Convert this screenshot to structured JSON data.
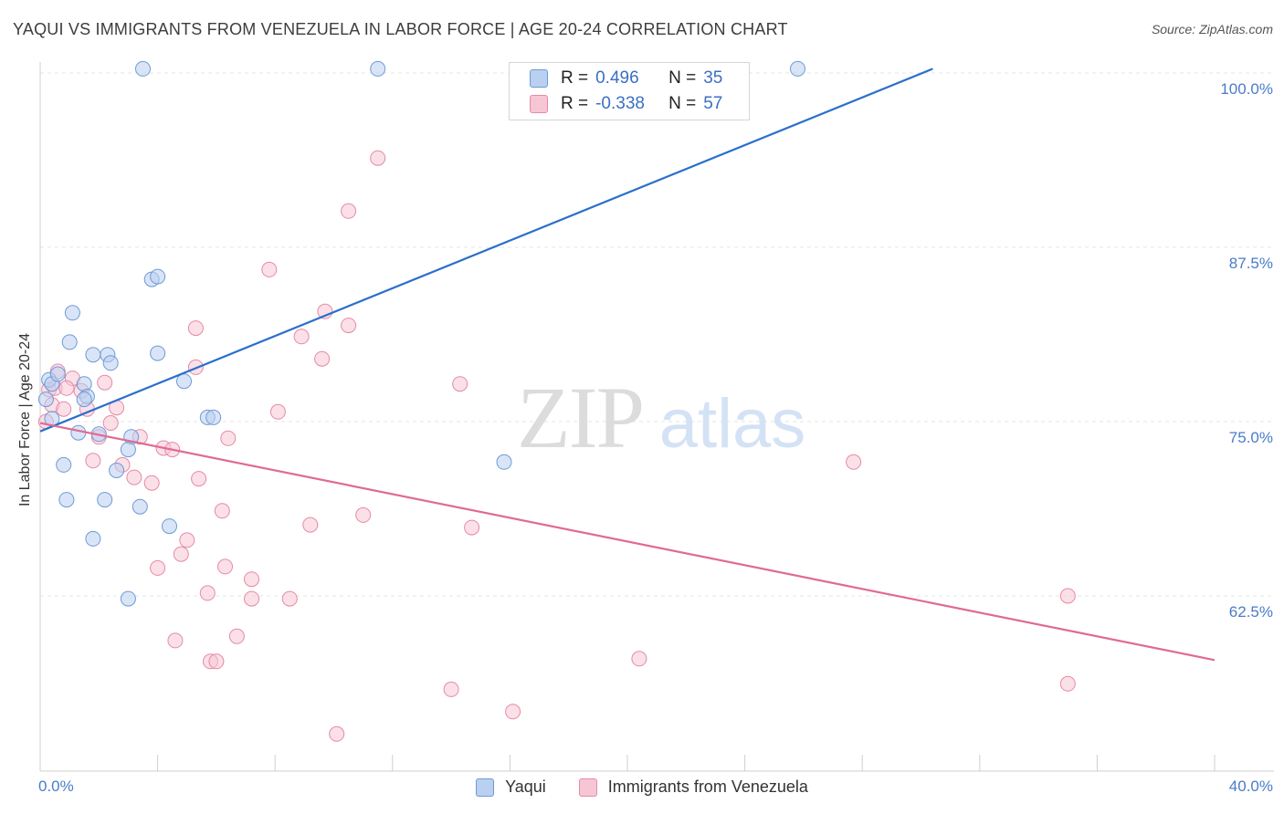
{
  "header": {
    "title": "YAQUI VS IMMIGRANTS FROM VENEZUELA IN LABOR FORCE | AGE 20-24 CORRELATION CHART",
    "source": "Source: ZipAtlas.com"
  },
  "watermark": {
    "zip": "ZIP",
    "atlas": "atlas"
  },
  "colors": {
    "blue_fill": "#b9d0f0",
    "blue_stroke": "#6e9ad6",
    "blue_line": "#2a6fcb",
    "pink_fill": "#f7c6d5",
    "pink_stroke": "#e58aa6",
    "pink_line": "#e06a93",
    "axis_text": "#4a7cc9"
  },
  "legend": {
    "rows": [
      {
        "r_label": "R =",
        "r_value": "0.496",
        "n_label": "N =",
        "n_value": "35"
      },
      {
        "r_label": "R =",
        "r_value": "-0.338",
        "n_label": "N =",
        "n_value": "57"
      }
    ]
  },
  "bottom_legend": {
    "items": [
      {
        "label": "Yaqui"
      },
      {
        "label": "Immigrants from Venezuela"
      }
    ]
  },
  "chart_data": {
    "type": "scatter",
    "title": "YAQUI VS IMMIGRANTS FROM VENEZUELA IN LABOR FORCE | AGE 20-24 CORRELATION CHART",
    "xlabel": "",
    "ylabel": "In Labor Force | Age 20-24",
    "xlim": [
      0,
      40
    ],
    "ylim": [
      51.5,
      101.5
    ],
    "x_tick_labels": [
      {
        "value": 0,
        "label": "0.0%"
      },
      {
        "value": 40,
        "label": "40.0%"
      }
    ],
    "y_tick_labels": [
      {
        "value": 100,
        "label": "100.0%"
      },
      {
        "value": 87.5,
        "label": "87.5%"
      },
      {
        "value": 75,
        "label": "75.0%"
      },
      {
        "value": 62.5,
        "label": "62.5%"
      }
    ],
    "grid": true,
    "series": [
      {
        "name": "Yaqui",
        "r": 0.496,
        "n": 35,
        "trend": {
          "x": [
            0,
            30.4
          ],
          "y": [
            74.3,
            100.3
          ]
        },
        "points": [
          [
            3.5,
            100.3
          ],
          [
            11.5,
            100.3
          ],
          [
            25.8,
            100.3
          ],
          [
            3.8,
            85.2
          ],
          [
            4.0,
            85.4
          ],
          [
            1.1,
            82.8
          ],
          [
            1.0,
            80.7
          ],
          [
            1.8,
            79.8
          ],
          [
            2.3,
            79.8
          ],
          [
            2.4,
            79.2
          ],
          [
            4.0,
            79.9
          ],
          [
            4.9,
            77.9
          ],
          [
            0.3,
            78.0
          ],
          [
            0.4,
            77.7
          ],
          [
            0.6,
            78.4
          ],
          [
            1.5,
            77.7
          ],
          [
            1.6,
            76.8
          ],
          [
            1.5,
            76.6
          ],
          [
            0.2,
            76.6
          ],
          [
            0.4,
            75.2
          ],
          [
            5.7,
            75.3
          ],
          [
            5.9,
            75.3
          ],
          [
            1.3,
            74.2
          ],
          [
            2.0,
            74.1
          ],
          [
            3.1,
            73.9
          ],
          [
            3.0,
            73.0
          ],
          [
            0.8,
            71.9
          ],
          [
            2.6,
            71.5
          ],
          [
            15.8,
            72.1
          ],
          [
            0.9,
            69.4
          ],
          [
            2.2,
            69.4
          ],
          [
            3.4,
            68.9
          ],
          [
            4.4,
            67.5
          ],
          [
            1.8,
            66.6
          ],
          [
            3.0,
            62.3
          ]
        ]
      },
      {
        "name": "Immigrants from Venezuela",
        "r": -0.338,
        "n": 57,
        "trend": {
          "x": [
            0,
            40
          ],
          "y": [
            74.9,
            57.9
          ]
        },
        "points": [
          [
            11.5,
            93.9
          ],
          [
            10.5,
            90.1
          ],
          [
            7.8,
            85.9
          ],
          [
            9.7,
            82.9
          ],
          [
            10.5,
            81.9
          ],
          [
            5.3,
            81.7
          ],
          [
            8.9,
            81.1
          ],
          [
            9.6,
            79.5
          ],
          [
            0.6,
            78.6
          ],
          [
            1.1,
            78.1
          ],
          [
            5.3,
            78.9
          ],
          [
            14.3,
            77.7
          ],
          [
            2.2,
            77.8
          ],
          [
            0.3,
            77.3
          ],
          [
            0.5,
            77.4
          ],
          [
            0.9,
            77.4
          ],
          [
            1.4,
            77.2
          ],
          [
            0.4,
            76.2
          ],
          [
            0.8,
            75.9
          ],
          [
            1.6,
            75.9
          ],
          [
            2.6,
            76.0
          ],
          [
            8.1,
            75.7
          ],
          [
            0.2,
            75.0
          ],
          [
            2.4,
            74.9
          ],
          [
            2.0,
            73.9
          ],
          [
            3.4,
            73.9
          ],
          [
            6.4,
            73.8
          ],
          [
            4.2,
            73.1
          ],
          [
            4.5,
            73.0
          ],
          [
            1.8,
            72.2
          ],
          [
            2.8,
            71.9
          ],
          [
            3.2,
            71.0
          ],
          [
            5.4,
            70.9
          ],
          [
            3.8,
            70.6
          ],
          [
            27.7,
            72.1
          ],
          [
            11.0,
            68.3
          ],
          [
            9.2,
            67.6
          ],
          [
            14.7,
            67.4
          ],
          [
            6.2,
            68.6
          ],
          [
            5.0,
            66.5
          ],
          [
            4.8,
            65.5
          ],
          [
            6.3,
            64.6
          ],
          [
            4.0,
            64.5
          ],
          [
            7.2,
            63.7
          ],
          [
            5.7,
            62.7
          ],
          [
            7.2,
            62.3
          ],
          [
            8.5,
            62.3
          ],
          [
            35.0,
            62.5
          ],
          [
            6.7,
            59.6
          ],
          [
            4.6,
            59.3
          ],
          [
            5.8,
            57.8
          ],
          [
            20.4,
            58.0
          ],
          [
            14.0,
            55.8
          ],
          [
            35.0,
            56.2
          ],
          [
            16.1,
            54.2
          ],
          [
            10.1,
            52.6
          ],
          [
            6.0,
            57.8
          ]
        ]
      }
    ]
  }
}
